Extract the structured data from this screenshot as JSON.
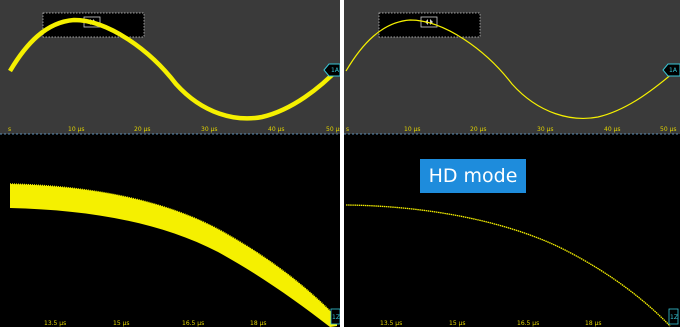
{
  "colors": {
    "trace": "#f5f000",
    "grid_panel": "#3a3a3a",
    "zoom_panel": "#000000",
    "accent": "#37c6d6",
    "hd_badge": "#1e8cdc"
  },
  "left_panel": {
    "overview_ticks": [
      "s",
      "10 µs",
      "20 µs",
      "30 µs",
      "40 µs",
      "50 µs"
    ],
    "zoom_ticks": [
      "13.5 µs",
      "15 µs",
      "16.5 µs",
      "18 µs"
    ],
    "channel_marker": "1A",
    "zoom_marker": "1Z"
  },
  "right_panel": {
    "overview_ticks": [
      "s",
      "10 µs",
      "20 µs",
      "30 µs",
      "40 µs",
      "50 µs"
    ],
    "zoom_ticks": [
      "13.5 µs",
      "15 µs",
      "16.5 µs",
      "18 µs"
    ],
    "channel_marker": "1A",
    "zoom_marker": "1Z",
    "mode_badge": "HD mode"
  },
  "icons": [
    "zoom-window-handle-icon",
    "channel-marker-icon"
  ]
}
